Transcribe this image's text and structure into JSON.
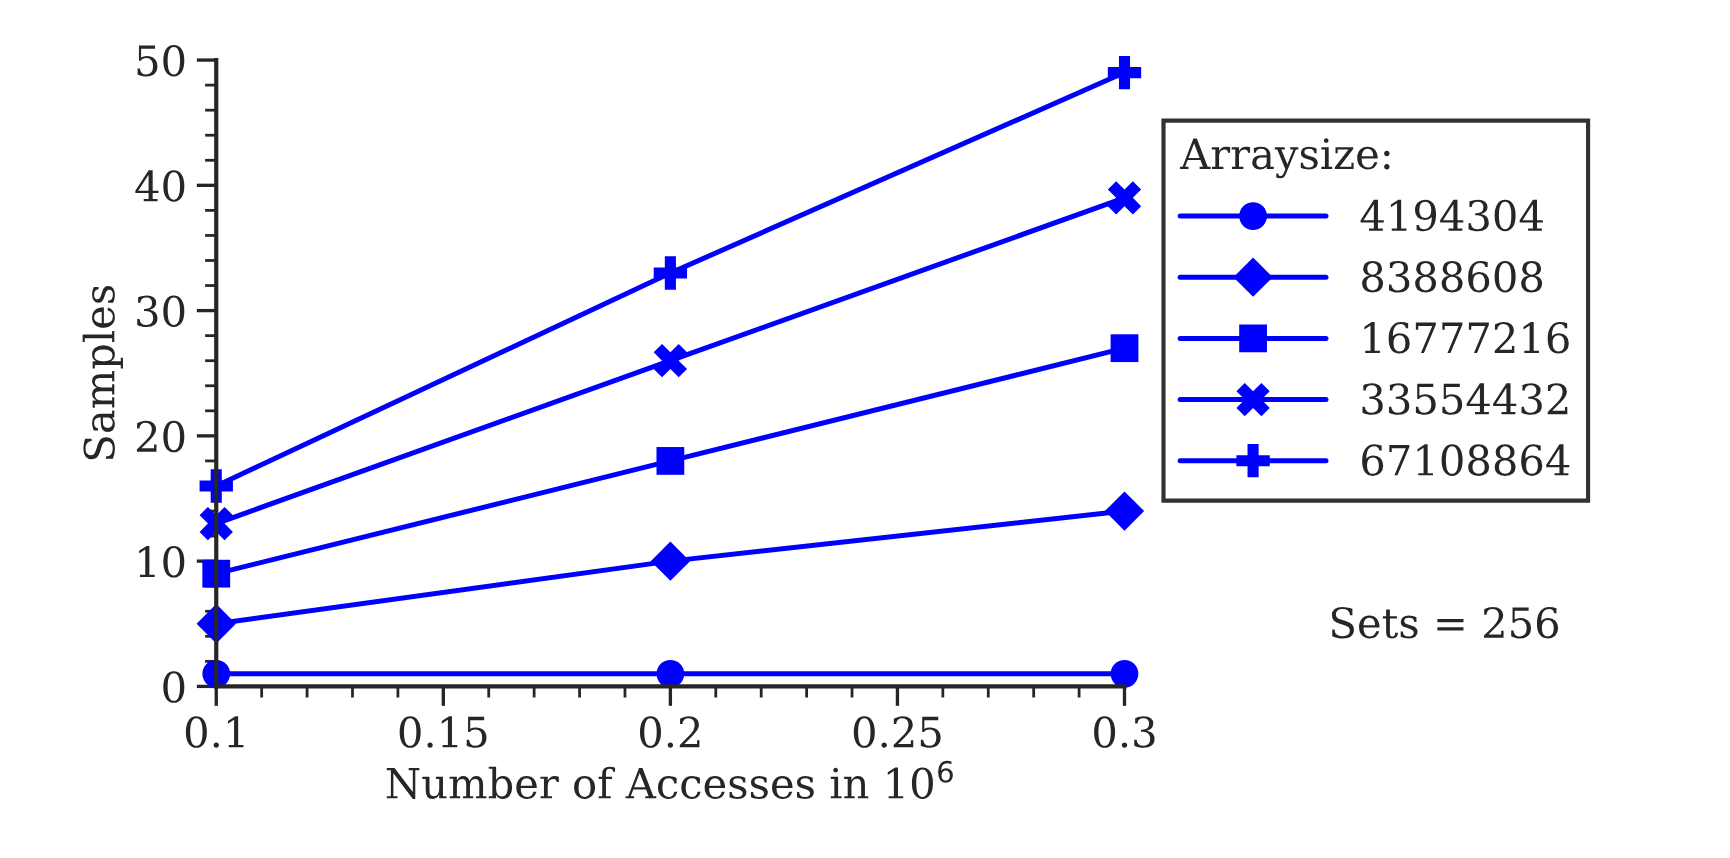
{
  "chart_data": {
    "type": "line",
    "xlabel": "Number of Accesses in 10$^{6}$",
    "ylabel": "Samples",
    "x": [
      0.1,
      0.2,
      0.3
    ],
    "xlim": [
      0.1,
      0.3
    ],
    "xticks": [
      0.1,
      0.15,
      0.2,
      0.25,
      0.3
    ],
    "ylim": [
      0,
      50
    ],
    "yticks": [
      0,
      10,
      20,
      30,
      40,
      50
    ],
    "legend": "right",
    "legend_title": "Arraysize:",
    "grid": false,
    "line_style": "solid",
    "annotations": [
      "Sets = 256"
    ],
    "series": [
      {
        "name": "4194304",
        "color": "#0000ff",
        "marker": "circle",
        "values": [
          1,
          1,
          1
        ]
      },
      {
        "name": "8388608",
        "color": "#0000ff",
        "marker": "diamond",
        "values": [
          5,
          10,
          14
        ]
      },
      {
        "name": "16777216",
        "color": "#0000ff",
        "marker": "square",
        "values": [
          9,
          18,
          27
        ]
      },
      {
        "name": "33554432",
        "color": "#0000ff",
        "marker": "cross",
        "values": [
          13,
          26,
          39
        ]
      },
      {
        "name": "67108864",
        "color": "#0000ff",
        "marker": "plus",
        "values": [
          16,
          33,
          49
        ]
      }
    ]
  }
}
